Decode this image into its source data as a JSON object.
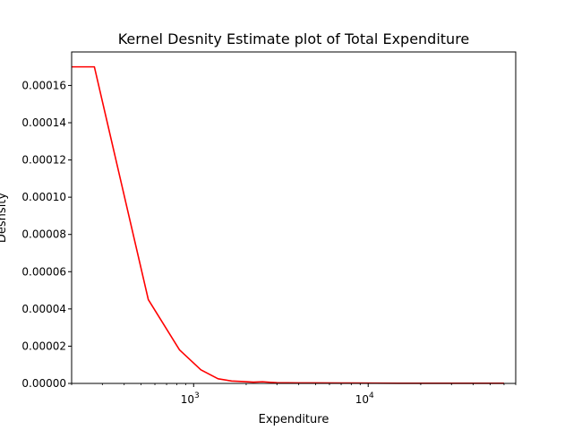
{
  "chart_data": {
    "type": "line",
    "title": "Kernel Desnity Estimate plot  of Total Expenditure",
    "xlabel": "Expenditure",
    "ylabel": "Desnsity",
    "x_scale": "log",
    "xlim": [
      200,
      70000
    ],
    "ylim": [
      0,
      0.000178
    ],
    "grid": false,
    "line_color": "#ff0000",
    "y_ticks": [
      "0.00000",
      "0.00002",
      "0.00004",
      "0.00006",
      "0.00008",
      "0.00010",
      "0.00012",
      "0.00014",
      "0.00016"
    ],
    "x_ticks": [
      {
        "value": 1000,
        "base": "10",
        "exp": "3"
      },
      {
        "value": 10000,
        "base": "10",
        "exp": "4"
      }
    ],
    "series": [
      {
        "x": [
          200,
          270,
          550,
          830,
          1100,
          1380,
          1650,
          1930,
          2200,
          2480,
          2760,
          3000,
          4000,
          5000,
          8000,
          15000,
          30000,
          60000
        ],
        "y": [
          0.00017,
          0.00017,
          4.5e-05,
          1.8e-05,
          7.3e-06,
          2.5e-06,
          1.3e-06,
          1e-06,
          7e-07,
          9e-07,
          6e-07,
          4e-07,
          3e-07,
          3e-07,
          2e-07,
          1e-07,
          1e-07,
          1e-07
        ]
      }
    ]
  }
}
